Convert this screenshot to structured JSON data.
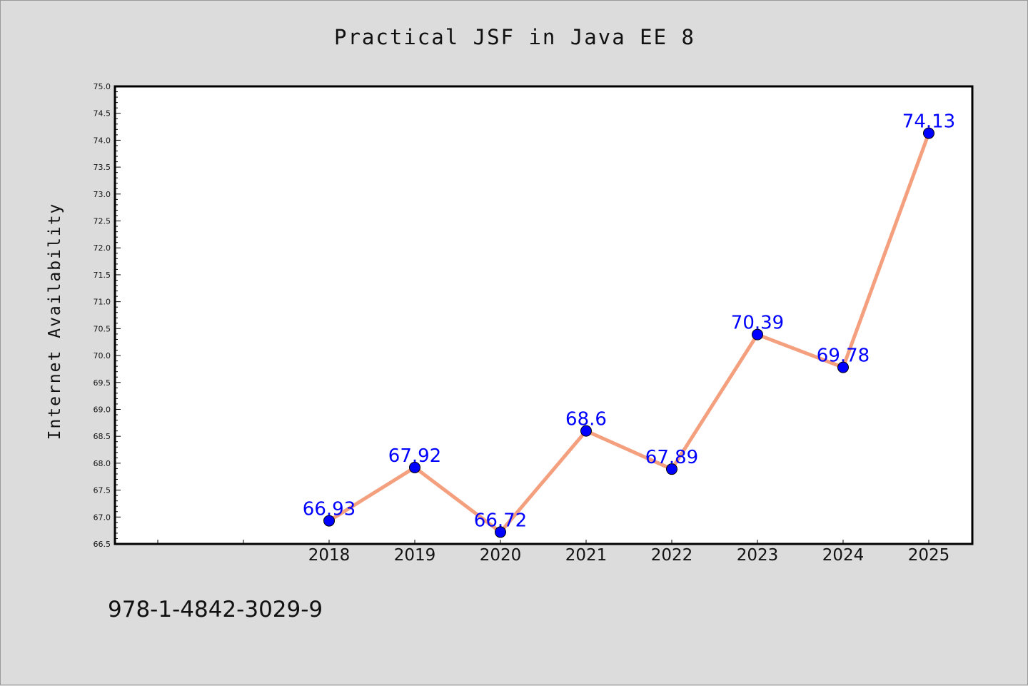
{
  "title": "Practical JSF in Java EE 8",
  "footer_text": "978-1-4842-3029-9",
  "chart_data": {
    "type": "line",
    "title": "Practical JSF in Java EE 8",
    "xlabel": "",
    "ylabel": "Internet Availability",
    "categories": [
      "2018",
      "2019",
      "2020",
      "2021",
      "2022",
      "2023",
      "2024",
      "2025"
    ],
    "series": [
      {
        "values": [
          66.93,
          67.92,
          66.72,
          68.6,
          67.89,
          70.39,
          69.78,
          74.13
        ],
        "data_labels": [
          "66.93",
          "67.92",
          "66.72",
          "68.6",
          "67.89",
          "70.39",
          "69.78",
          "74.13"
        ]
      }
    ],
    "ylim": [
      66.5,
      75.0
    ],
    "yticks": [
      "66.5",
      "67.0",
      "67.5",
      "68.0",
      "68.5",
      "69.0",
      "69.5",
      "70.0",
      "70.5",
      "71.0",
      "71.5",
      "72.0",
      "72.5",
      "73.0",
      "73.5",
      "74.0",
      "74.5",
      "75.0"
    ],
    "grid": false,
    "legend": "none",
    "colors": {
      "line": "#f4a07e",
      "marker": "#0000ff",
      "data_label": "#0000ff",
      "background": "#dcdcdc",
      "plot_background": "#ffffff"
    }
  }
}
